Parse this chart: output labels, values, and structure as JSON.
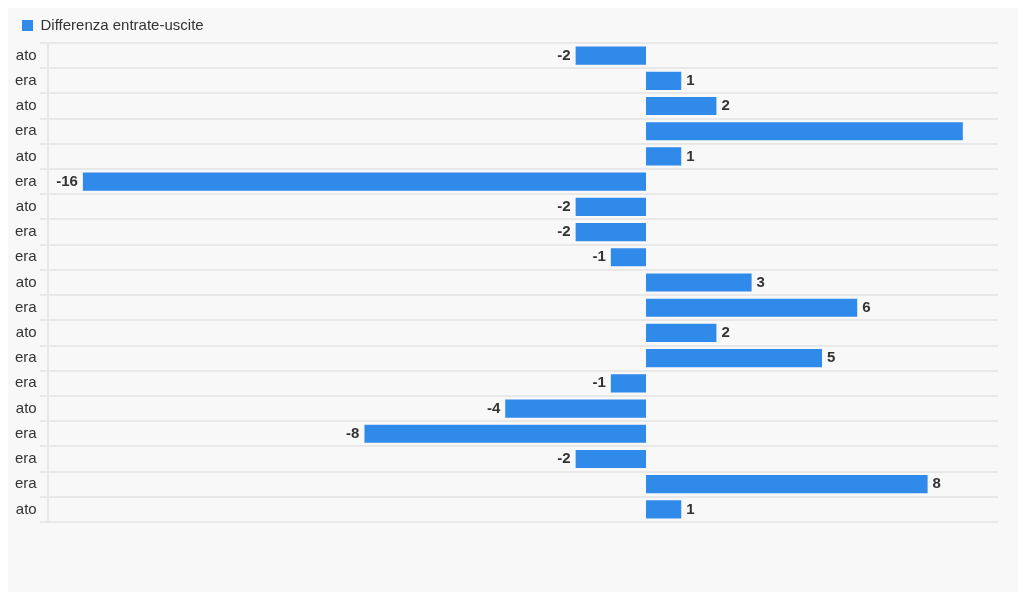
{
  "chart_data": {
    "type": "bar",
    "orientation": "horizontal",
    "categories": [
      "ato",
      "era",
      "ato",
      "era",
      "ato",
      "era",
      "ato",
      "era",
      "era",
      "ato",
      "era",
      "ato",
      "era",
      "era",
      "ato",
      "era",
      "era",
      "era",
      "ato"
    ],
    "series": [
      {
        "name": "Differenza entrate-uscite",
        "color": "#308aea",
        "values": [
          -2,
          1,
          2,
          9,
          1,
          -16,
          -2,
          -2,
          -1,
          3,
          6,
          2,
          5,
          -1,
          -4,
          -8,
          -2,
          8,
          1
        ],
        "value_labels": [
          "-2",
          "1",
          "2",
          null,
          "1",
          "-16",
          "-2",
          "-2",
          "-1",
          "3",
          "6",
          "2",
          "5",
          "-1",
          "-4",
          "-8",
          "-2",
          "8",
          "1"
        ]
      }
    ],
    "xlim": [
      -17,
      10
    ],
    "tick_labels": "y",
    "grid": "y",
    "legend": "top left"
  }
}
